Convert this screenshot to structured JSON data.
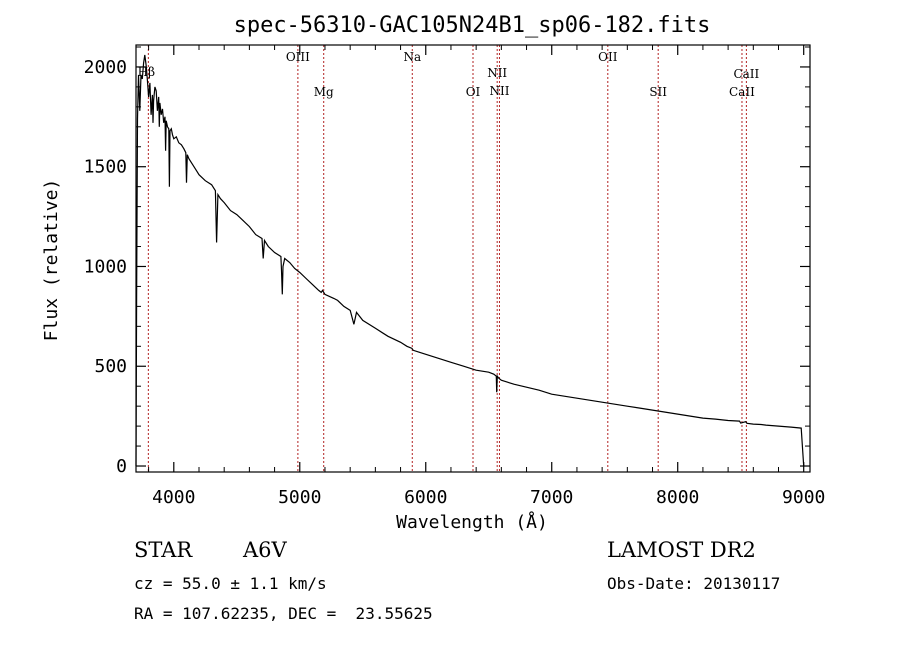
{
  "chart_data": {
    "type": "line",
    "title": "spec-56310-GAC105N24B1_sp06-182.fits",
    "xlabel": "Wavelength (Å)",
    "ylabel": "Flux (relative)",
    "xlim": [
      3700,
      9050
    ],
    "ylim": [
      -30,
      2110
    ],
    "x_ticks": [
      4000,
      5000,
      6000,
      7000,
      8000,
      9000
    ],
    "y_ticks": [
      0,
      500,
      1000,
      1500,
      2000
    ],
    "grid": false,
    "series": [
      {
        "x": [
          3700,
          3705,
          3712,
          3720,
          3730,
          3740,
          3750,
          3760,
          3770,
          3780,
          3790,
          3800,
          3810,
          3820,
          3830,
          3835,
          3840,
          3850,
          3860,
          3870,
          3880,
          3885,
          3890,
          3900,
          3910,
          3920,
          3930,
          3935,
          3940,
          3950,
          3960,
          3965,
          3970,
          3980,
          3990,
          4000,
          4020,
          4040,
          4060,
          4080,
          4095,
          4101,
          4107,
          4120,
          4150,
          4180,
          4200,
          4250,
          4300,
          4330,
          4340,
          4350,
          4370,
          4400,
          4450,
          4500,
          4550,
          4600,
          4650,
          4700,
          4710,
          4720,
          4750,
          4800,
          4850,
          4855,
          4861,
          4867,
          4880,
          4920,
          4960,
          5000,
          5050,
          5100,
          5150,
          5170,
          5180,
          5200,
          5270,
          5300,
          5350,
          5400,
          5430,
          5450,
          5500,
          5600,
          5700,
          5800,
          5850,
          5890,
          5900,
          5950,
          6000,
          6100,
          6200,
          6300,
          6400,
          6500,
          6540,
          6560,
          6563,
          6568,
          6580,
          6600,
          6700,
          6800,
          6900,
          7000,
          7100,
          7200,
          7300,
          7400,
          7500,
          7600,
          7700,
          7800,
          7900,
          8000,
          8100,
          8200,
          8300,
          8400,
          8490,
          8500,
          8540,
          8550,
          8600,
          8662,
          8700,
          8800,
          8900,
          8980,
          9000,
          9001
        ],
        "y": [
          0,
          820,
          1740,
          1960,
          1780,
          1960,
          1940,
          2020,
          2060,
          2010,
          1940,
          1850,
          1920,
          1760,
          1860,
          1720,
          1830,
          1900,
          1880,
          1780,
          1850,
          1700,
          1820,
          1760,
          1790,
          1720,
          1750,
          1580,
          1730,
          1700,
          1690,
          1400,
          1680,
          1690,
          1660,
          1640,
          1650,
          1620,
          1610,
          1590,
          1570,
          1420,
          1560,
          1540,
          1510,
          1480,
          1460,
          1430,
          1410,
          1380,
          1120,
          1360,
          1340,
          1320,
          1280,
          1260,
          1230,
          1200,
          1160,
          1140,
          1040,
          1130,
          1100,
          1070,
          1050,
          980,
          860,
          1000,
          1040,
          1020,
          990,
          970,
          940,
          910,
          880,
          870,
          880,
          860,
          840,
          830,
          800,
          780,
          710,
          770,
          730,
          690,
          650,
          620,
          600,
          590,
          580,
          570,
          560,
          540,
          520,
          500,
          480,
          470,
          460,
          450,
          370,
          450,
          440,
          430,
          410,
          395,
          380,
          360,
          350,
          340,
          330,
          320,
          310,
          300,
          290,
          280,
          270,
          260,
          250,
          240,
          235,
          228,
          225,
          215,
          222,
          214,
          210,
          208,
          205,
          200,
          195,
          190,
          0,
          0
        ]
      }
    ],
    "lines": [
      {
        "name": "Hβ",
        "wavelength": 3798
      },
      {
        "name": "OIII",
        "wavelength": 4985
      },
      {
        "name": "Mg",
        "wavelength": 5190
      },
      {
        "name": "Na",
        "wavelength": 5893
      },
      {
        "name": "OI",
        "wavelength": 6375
      },
      {
        "name": "NII",
        "wavelength": 6567
      },
      {
        "name": "NII",
        "wavelength": 6585
      },
      {
        "name": "OII",
        "wavelength": 7445
      },
      {
        "name": "SII",
        "wavelength": 7845
      },
      {
        "name": "CaII",
        "wavelength": 8510
      },
      {
        "name": "CaII",
        "wavelength": 8545
      }
    ]
  },
  "footer": {
    "object_class": "STAR",
    "subclass": "A6V",
    "survey": "LAMOST DR2",
    "redshift": "cz = 55.0 ± 1.1 km/s",
    "obs_date": "Obs-Date: 20130117",
    "coords": "RA = 107.62235, DEC =  23.55625"
  }
}
